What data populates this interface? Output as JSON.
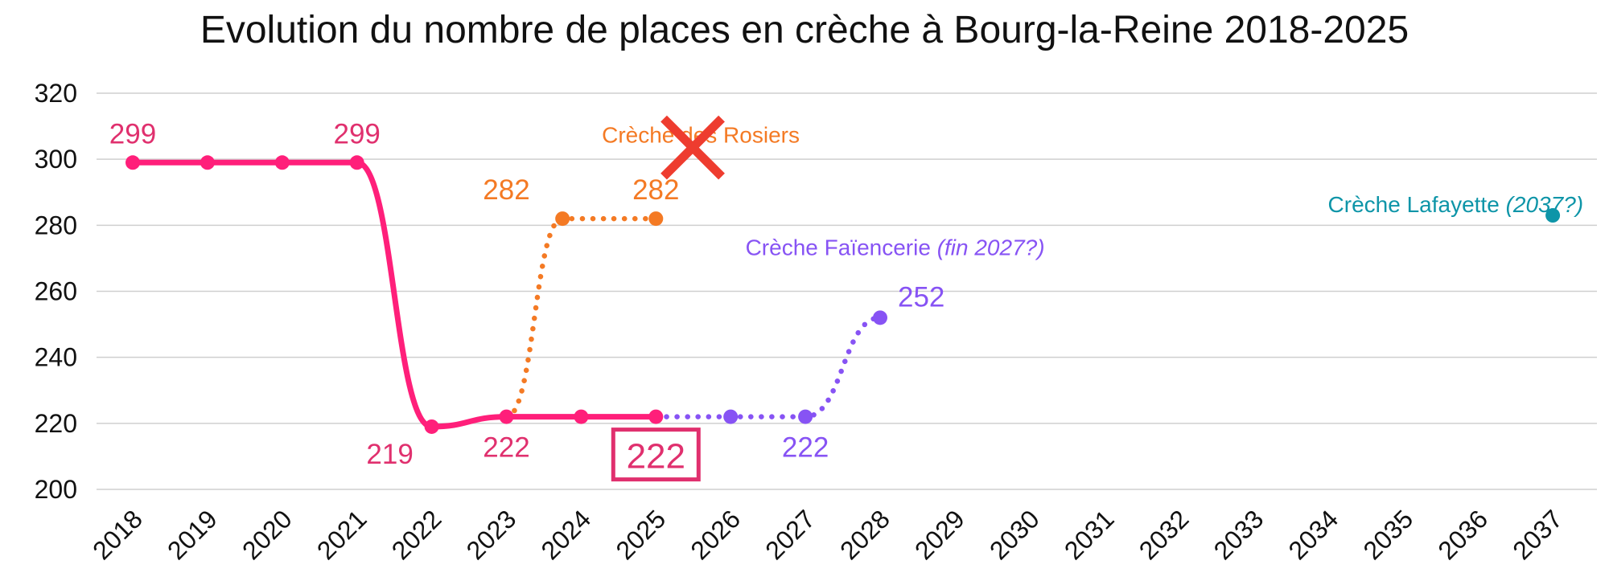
{
  "chart_data": {
    "type": "line",
    "title": "Evolution du nombre de places en crèche à Bourg-la-Reine 2018-2025",
    "xlabel": "",
    "ylabel": "",
    "x": [
      "2018",
      "2019",
      "2020",
      "2021",
      "2022",
      "2023",
      "2024",
      "2025",
      "2026",
      "2027",
      "2028",
      "2029",
      "2030",
      "2031",
      "2032",
      "2033",
      "2034",
      "2035",
      "2036",
      "2037"
    ],
    "ylim": [
      200,
      320
    ],
    "yticks": [
      "200",
      "220",
      "240",
      "260",
      "280",
      "300",
      "320"
    ],
    "grid": true,
    "series": [
      {
        "key": "main",
        "color": "#ff1f7a",
        "style": "solid",
        "points": [
          [
            2018,
            299
          ],
          [
            2019,
            299
          ],
          [
            2020,
            299
          ],
          [
            2021,
            299
          ],
          [
            2022,
            219
          ],
          [
            2023,
            222
          ],
          [
            2024,
            222
          ],
          [
            2025,
            222
          ]
        ]
      },
      {
        "key": "rosiers",
        "color": "#f47a24",
        "style": "dotted",
        "points": [
          [
            2023,
            222
          ],
          [
            2023.75,
            282
          ],
          [
            2025,
            282
          ]
        ],
        "markers": [
          [
            2023.75,
            282
          ],
          [
            2025,
            282
          ]
        ]
      },
      {
        "key": "faiencerie",
        "color": "#8753f4",
        "style": "dotted",
        "points": [
          [
            2025,
            222
          ],
          [
            2026,
            222
          ],
          [
            2027,
            222
          ],
          [
            2028,
            252
          ]
        ],
        "markers": [
          [
            2026,
            222
          ],
          [
            2027,
            222
          ],
          [
            2028,
            252
          ]
        ]
      },
      {
        "key": "lafayette",
        "color": "#0e95a8",
        "style": "point",
        "points": [
          [
            2037,
            283
          ]
        ],
        "markers": [
          [
            2037,
            283
          ]
        ]
      }
    ],
    "data_labels": [
      {
        "text": "299",
        "x": 2018,
        "y": 299,
        "pos": "above",
        "color": "#e0306e"
      },
      {
        "text": "299",
        "x": 2021,
        "y": 299,
        "pos": "above",
        "color": "#e0306e"
      },
      {
        "text": "219",
        "x": 2022,
        "y": 219,
        "pos": "below-left",
        "color": "#e0306e"
      },
      {
        "text": "222",
        "x": 2023,
        "y": 222,
        "pos": "below",
        "color": "#e0306e"
      },
      {
        "text": "282",
        "x": 2023,
        "y": 282,
        "pos": "above",
        "color": "#f47a24"
      },
      {
        "text": "282",
        "x": 2025,
        "y": 282,
        "pos": "above",
        "color": "#f47a24"
      },
      {
        "text": "222",
        "x": 2027,
        "y": 222,
        "pos": "below",
        "color": "#8753f4"
      },
      {
        "text": "252",
        "x": 2028,
        "y": 252,
        "pos": "right",
        "color": "#8753f4"
      }
    ],
    "boxed_label": {
      "text": "222",
      "x": 2025,
      "y": 222,
      "color": "#e0306e"
    },
    "annotations": [
      {
        "text": "Crèche des Rosiers",
        "italic": "",
        "x": 2025.6,
        "y": 305,
        "color": "#f47a24",
        "crossed": true
      },
      {
        "text": "Crèche Faïencerie ",
        "italic": "(fin 2027?)",
        "x": 2028.2,
        "y": 271,
        "color": "#8753f4",
        "crossed": false
      },
      {
        "text": "Crèche Lafayette ",
        "italic": "(2037?)",
        "x": 2035.7,
        "y": 284,
        "color": "#0e95a8",
        "crossed": false
      }
    ],
    "cross_color": "#ee3c2f"
  }
}
